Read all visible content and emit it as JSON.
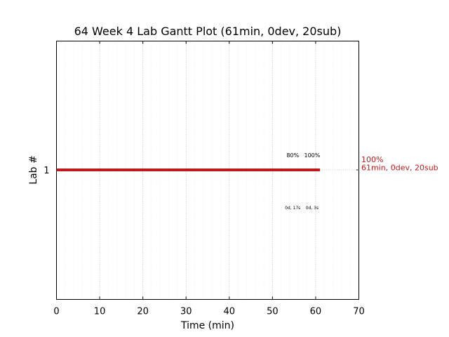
{
  "chart_data": {
    "type": "gantt",
    "title": "64 Week 4 Lab Gantt Plot (61min, 0dev, 20sub)",
    "xlabel": "Time (min)",
    "ylabel": "Lab #",
    "xlim": [
      0,
      70
    ],
    "x_ticks": [
      0,
      10,
      20,
      30,
      40,
      50,
      60,
      70
    ],
    "x_minor_step": 2,
    "grid": true,
    "colors": {
      "bar": "#c0191b",
      "annotation": "#c0191b"
    },
    "labs": [
      {
        "lab": "1",
        "start": 0,
        "end": 61,
        "label_line1": "100%",
        "label_line2": "61min, 0dev, 20sub",
        "milestones": [
          {
            "time": 55.5,
            "percent": "80%",
            "detail": "0d, 17s"
          },
          {
            "time": 60,
            "percent": "100%",
            "detail": "0d, 3s"
          }
        ]
      }
    ]
  }
}
